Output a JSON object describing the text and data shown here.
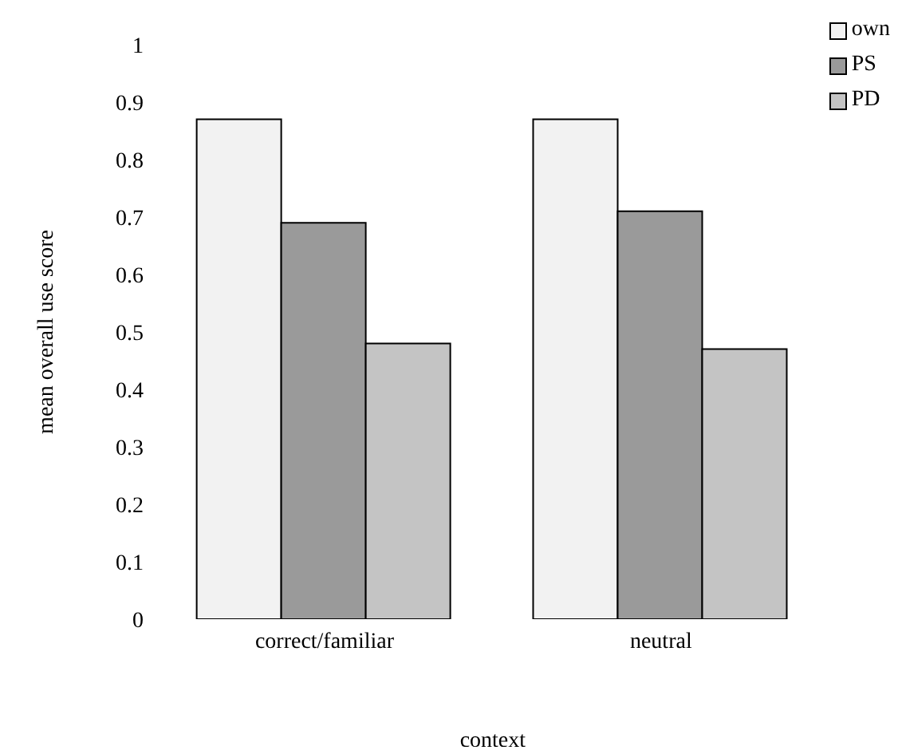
{
  "chart_data": {
    "type": "bar",
    "xlabel": "context",
    "ylabel": "mean overall use score",
    "categories": [
      "correct/familiar",
      "neutral"
    ],
    "series": [
      {
        "name": "own",
        "color": "#f2f2f2",
        "values": [
          0.87,
          0.87
        ]
      },
      {
        "name": "PS",
        "color": "#9a9a9a",
        "values": [
          0.69,
          0.71
        ]
      },
      {
        "name": "PD",
        "color": "#c4c4c4",
        "values": [
          0.48,
          0.47
        ]
      }
    ],
    "ylim": [
      0,
      1
    ],
    "yticks": [
      0,
      0.1,
      0.2,
      0.3,
      0.4,
      0.5,
      0.6,
      0.7,
      0.8,
      0.9,
      1
    ],
    "grid": false,
    "legend": "top right"
  }
}
